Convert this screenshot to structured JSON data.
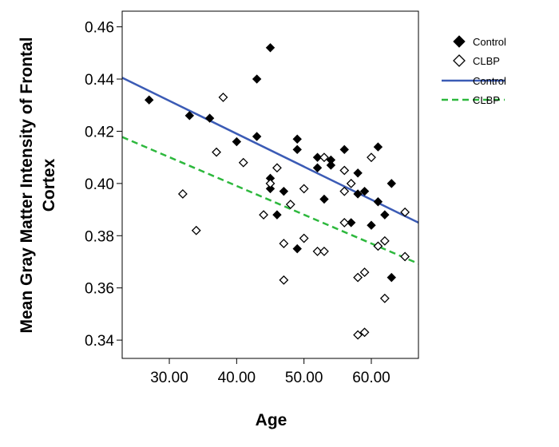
{
  "chart_data": {
    "type": "scatter",
    "xlabel": "Age",
    "ylabel_lines": [
      "Mean Gray Matter Intensity of Frontal",
      "Cortex"
    ],
    "xlim": [
      23,
      67
    ],
    "ylim": [
      0.333,
      0.466
    ],
    "x_ticks": [
      30,
      40,
      50,
      60
    ],
    "x_tick_labels": [
      "30.00",
      "40.00",
      "50.00",
      "60.00"
    ],
    "y_ticks": [
      0.34,
      0.36,
      0.38,
      0.4,
      0.42,
      0.44,
      0.46
    ],
    "y_tick_labels": [
      "0.34",
      "0.36",
      "0.38",
      "0.40",
      "0.42",
      "0.44",
      "0.46"
    ],
    "legend_position": "top-right",
    "grid": false,
    "series": [
      {
        "name": "Control",
        "marker": "filled-diamond",
        "color": "#000000",
        "points": [
          [
            27,
            0.432
          ],
          [
            33,
            0.426
          ],
          [
            36,
            0.425
          ],
          [
            40,
            0.416
          ],
          [
            43,
            0.44
          ],
          [
            43,
            0.418
          ],
          [
            45,
            0.452
          ],
          [
            45,
            0.402
          ],
          [
            45,
            0.398
          ],
          [
            46,
            0.388
          ],
          [
            47,
            0.397
          ],
          [
            49,
            0.417
          ],
          [
            49,
            0.413
          ],
          [
            49,
            0.375
          ],
          [
            52,
            0.41
          ],
          [
            52,
            0.406
          ],
          [
            53,
            0.394
          ],
          [
            54,
            0.409
          ],
          [
            54,
            0.407
          ],
          [
            56,
            0.413
          ],
          [
            57,
            0.385
          ],
          [
            58,
            0.404
          ],
          [
            58,
            0.396
          ],
          [
            59,
            0.397
          ],
          [
            60,
            0.384
          ],
          [
            61,
            0.414
          ],
          [
            61,
            0.393
          ],
          [
            62,
            0.388
          ],
          [
            63,
            0.4
          ],
          [
            63,
            0.364
          ]
        ]
      },
      {
        "name": "CLBP",
        "marker": "hollow-diamond",
        "color": "#000000",
        "points": [
          [
            32,
            0.396
          ],
          [
            34,
            0.382
          ],
          [
            37,
            0.412
          ],
          [
            38,
            0.433
          ],
          [
            41,
            0.408
          ],
          [
            44,
            0.388
          ],
          [
            45,
            0.4
          ],
          [
            46,
            0.406
          ],
          [
            47,
            0.377
          ],
          [
            47,
            0.363
          ],
          [
            48,
            0.392
          ],
          [
            50,
            0.398
          ],
          [
            50,
            0.379
          ],
          [
            52,
            0.374
          ],
          [
            53,
            0.41
          ],
          [
            53,
            0.374
          ],
          [
            56,
            0.405
          ],
          [
            56,
            0.397
          ],
          [
            56,
            0.385
          ],
          [
            57,
            0.4
          ],
          [
            58,
            0.364
          ],
          [
            58,
            0.342
          ],
          [
            59,
            0.366
          ],
          [
            59,
            0.343
          ],
          [
            60,
            0.41
          ],
          [
            61,
            0.376
          ],
          [
            62,
            0.378
          ],
          [
            62,
            0.356
          ],
          [
            65,
            0.389
          ],
          [
            65,
            0.372
          ]
        ]
      }
    ],
    "fit_lines": [
      {
        "name": "Control",
        "color": "#3b5bb5",
        "style": "solid",
        "x": [
          23,
          67
        ],
        "y": [
          0.4405,
          0.385
        ]
      },
      {
        "name": "CLBP",
        "color": "#2db83d",
        "style": "dashed",
        "x": [
          23,
          67
        ],
        "y": [
          0.4178,
          0.3693
        ]
      }
    ]
  }
}
